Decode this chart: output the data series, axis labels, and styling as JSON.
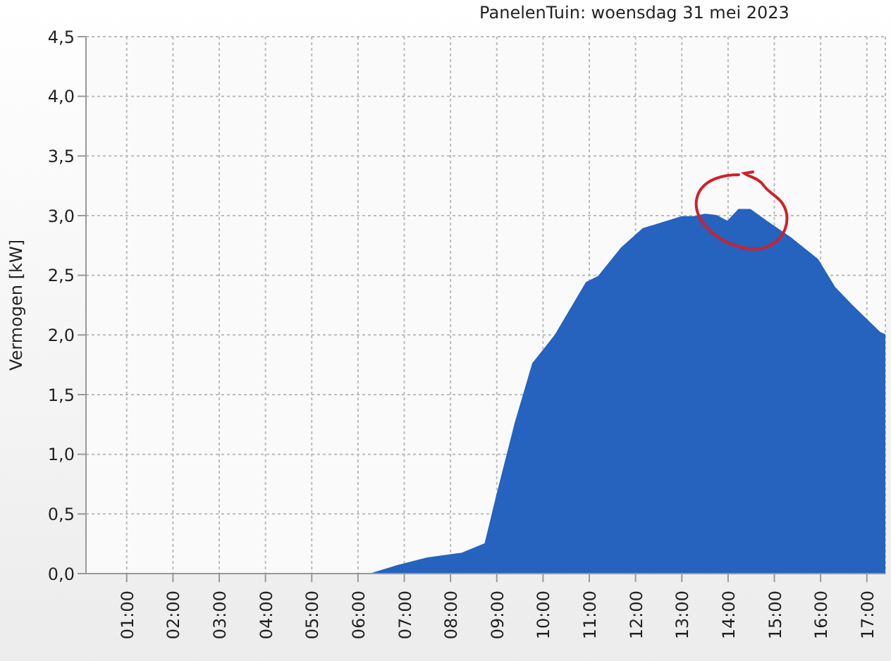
{
  "chart_data": {
    "type": "area",
    "title": "PanelenTuin: woensdag 31 mei 2023",
    "ylabel": "Vermogen [kW]",
    "x": [
      5.48,
      6.3,
      6.8,
      7.5,
      8.25,
      8.75,
      9.0,
      9.4,
      9.78,
      10.27,
      10.94,
      11.2,
      11.7,
      12.16,
      12.5,
      13.0,
      13.26,
      13.5,
      13.74,
      13.99,
      14.23,
      14.48,
      14.84,
      15.33,
      15.94,
      16.3,
      16.67,
      17.28,
      17.4
    ],
    "series": [
      {
        "color": "#2563be",
        "values": [
          0,
          0,
          0.06,
          0.13,
          0.17,
          0.25,
          0.65,
          1.26,
          1.76,
          2.0,
          2.44,
          2.49,
          2.73,
          2.89,
          2.93,
          2.99,
          2.99,
          3.01,
          3.0,
          2.95,
          3.05,
          3.05,
          2.95,
          2.82,
          2.63,
          2.4,
          2.25,
          2.02,
          2.0
        ]
      }
    ],
    "xlim": [
      0.12,
      17.4
    ],
    "xticks": [
      {
        "value": 1,
        "label": "01:00"
      },
      {
        "value": 2,
        "label": "02:00"
      },
      {
        "value": 3,
        "label": "03:00"
      },
      {
        "value": 4,
        "label": "04:00"
      },
      {
        "value": 5,
        "label": "05:00"
      },
      {
        "value": 6,
        "label": "06:00"
      },
      {
        "value": 7,
        "label": "07:00"
      },
      {
        "value": 8,
        "label": "08:00"
      },
      {
        "value": 9,
        "label": "09:00"
      },
      {
        "value": 10,
        "label": "10:00"
      },
      {
        "value": 11,
        "label": "11:00"
      },
      {
        "value": 12,
        "label": "12:00"
      },
      {
        "value": 13,
        "label": "13:00"
      },
      {
        "value": 14,
        "label": "14:00"
      },
      {
        "value": 15,
        "label": "15:00"
      },
      {
        "value": 16,
        "label": "16:00"
      },
      {
        "value": 17,
        "label": "17:00"
      }
    ],
    "ylim": [
      0,
      4.5
    ],
    "yticks": [
      {
        "value": 0,
        "label": "0,0"
      },
      {
        "value": 0.5,
        "label": "0,5"
      },
      {
        "value": 1,
        "label": "1,0"
      },
      {
        "value": 1.5,
        "label": "1,5"
      },
      {
        "value": 2,
        "label": "2,0"
      },
      {
        "value": 2.5,
        "label": "2,5"
      },
      {
        "value": 3,
        "label": "3,0"
      },
      {
        "value": 3.5,
        "label": "3,5"
      },
      {
        "value": 4,
        "label": "4,0"
      },
      {
        "value": 4.5,
        "label": "4,5"
      }
    ],
    "grid": true,
    "legend": false,
    "marker": "none"
  }
}
